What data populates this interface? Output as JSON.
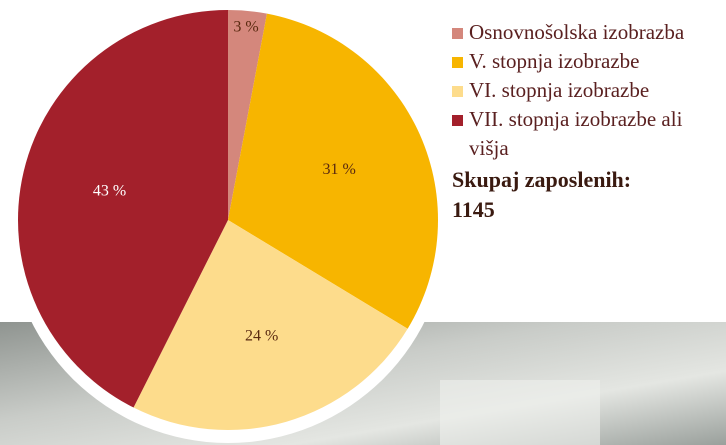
{
  "chart_data": {
    "type": "pie",
    "categories": [
      "Osnovnošolska izobrazba",
      "V. stopnja izobrazbe",
      "VI. stopnja izobrazbe",
      "VII. stopnja izobrazbe ali višja"
    ],
    "values": [
      3,
      31,
      24,
      43
    ],
    "value_labels": [
      "3 %",
      "31 %",
      "24 %",
      "43 %"
    ],
    "colors": [
      "#d4877c",
      "#f7b500",
      "#fddc8c",
      "#a3202b"
    ],
    "total_label": "Skupaj zaposlenih:",
    "total": 1145
  }
}
